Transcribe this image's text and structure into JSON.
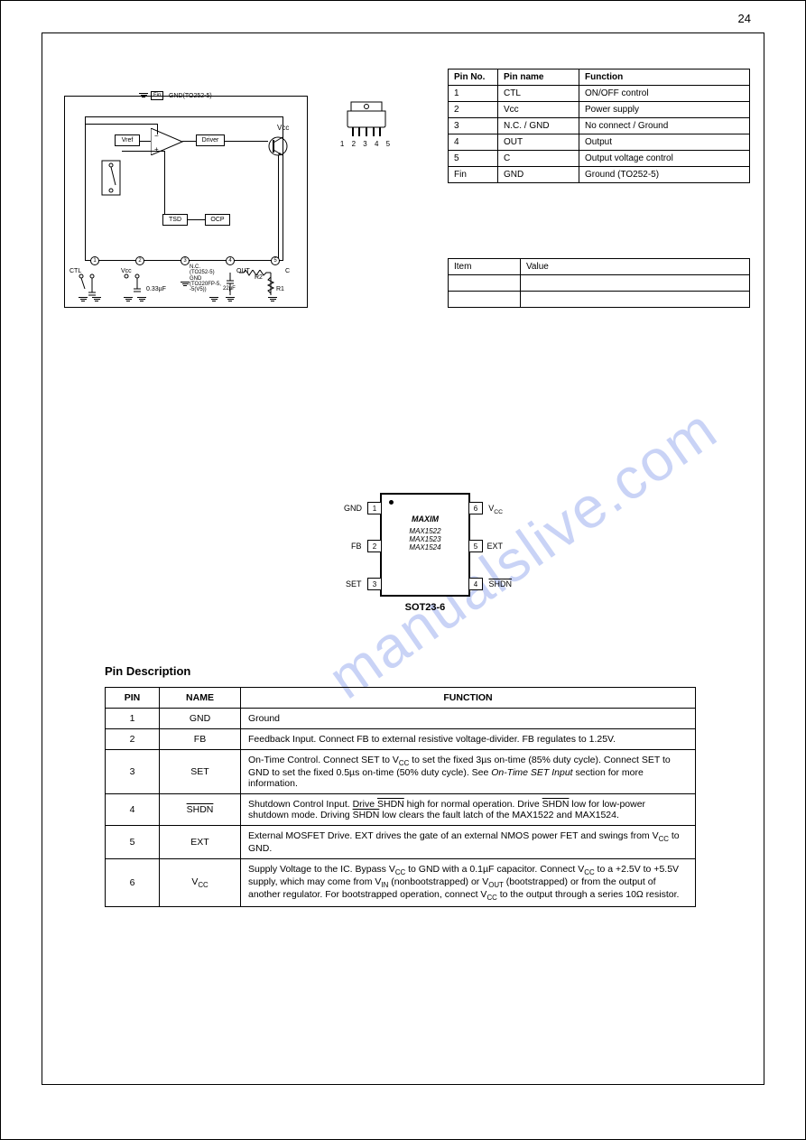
{
  "page_number": "24",
  "watermark_text": "manualslive.com",
  "colors": {
    "text": "#000000",
    "border": "#000000",
    "background": "#ffffff",
    "watermark": "rgba(100,130,230,0.35)"
  },
  "block_diagram": {
    "top_tab_label": "GND(TO252-5)",
    "top_tab_pin": "Fin",
    "vref_label": "Vref",
    "driver_label": "Driver",
    "tsd_label": "TSD",
    "ocp_label": "OCP",
    "vcc_top_label": "Vcc",
    "pins": {
      "p1": {
        "num": "1",
        "name": "CTL"
      },
      "p2": {
        "num": "2",
        "name": "Vcc"
      },
      "p3": {
        "num": "3",
        "name_top": "N.C.",
        "pkg_top": "(TO252-5)",
        "name_bot": "GND",
        "pkg_bot": "(TO220FP-5,\n-5(V5))"
      },
      "p4": {
        "num": "4",
        "name": "OUT"
      },
      "p5": {
        "num": "5",
        "name": "C"
      }
    },
    "cap1_label": "0.33µF",
    "cap2_label": "22µF",
    "r1_label": "R1",
    "r2_label": "R2"
  },
  "package_outline": {
    "pin_numbers": "1 2 3 4 5"
  },
  "pin_small_table": {
    "header": [
      "Pin No.",
      "Pin name",
      "Function"
    ],
    "rows": [
      [
        "1",
        "CTL",
        "ON/OFF control"
      ],
      [
        "2",
        "Vcc",
        "Power supply"
      ],
      [
        "3",
        "N.C. / GND",
        "No connect / Ground"
      ],
      [
        "4",
        "OUT",
        "Output"
      ],
      [
        "5",
        "C",
        "Output voltage control"
      ],
      [
        "Fin",
        "GND",
        "Ground (TO252-5)"
      ]
    ]
  },
  "small_3row": {
    "rows": [
      [
        "Item",
        "Value"
      ],
      [
        "",
        ""
      ],
      [
        "",
        ""
      ]
    ]
  },
  "sot23": {
    "brand": "MAXIM",
    "parts": [
      "MAX1522",
      "MAX1523",
      "MAX1524"
    ],
    "package_name": "SOT23-6",
    "pins_left": [
      {
        "n": "1",
        "lbl": "GND"
      },
      {
        "n": "2",
        "lbl": "FB"
      },
      {
        "n": "3",
        "lbl": "SET"
      }
    ],
    "pins_right": [
      {
        "n": "6",
        "lbl": "Vcc"
      },
      {
        "n": "5",
        "lbl": "EXT"
      },
      {
        "n": "4",
        "lbl": "SHDN",
        "over": true
      }
    ]
  },
  "pin_desc_header": "Pin Description",
  "pin_func_table": {
    "headers": [
      "PIN",
      "NAME",
      "FUNCTION"
    ],
    "col_widths": [
      "60px",
      "90px",
      "auto"
    ],
    "rows": [
      {
        "pin": "1",
        "name": "GND",
        "func": "Ground"
      },
      {
        "pin": "2",
        "name": "FB",
        "func": "Feedback Input. Connect FB to external resistive voltage-divider. FB regulates to 1.25V."
      },
      {
        "pin": "3",
        "name": "SET",
        "func": "On-Time Control. Connect SET to V<sub>CC</sub> to set the fixed 3µs on-time (85% duty cycle). Connect SET to GND to set the fixed 0.5µs on-time (50% duty cycle). See <i>On-Time SET Input</i> section for more information."
      },
      {
        "pin": "4",
        "name": "SHDN",
        "name_over": true,
        "func": "Shutdown Control Input. Drive <span class=\"overline\">SHDN</span> high for normal operation. Drive <span class=\"overline\">SHDN</span> low for low-power shutdown mode. Driving <span class=\"overline\">SHDN</span> low clears the fault latch of the MAX1522 and MAX1524."
      },
      {
        "pin": "5",
        "name": "EXT",
        "func": "External MOSFET Drive. EXT drives the gate of an external NMOS power FET and swings from V<sub>CC</sub> to GND."
      },
      {
        "pin": "6",
        "name": "Vcc",
        "name_html": "V<sub>CC</sub>",
        "func": "Supply Voltage to the IC. Bypass V<sub>CC</sub> to GND with a 0.1µF capacitor. Connect V<sub>CC</sub> to a +2.5V to +5.5V supply, which may come from V<sub>IN</sub> (nonbootstrapped) or V<sub>OUT</sub> (bootstrapped) or from the output of another regulator. For bootstrapped operation, connect V<sub>CC</sub> to the output through a series 10Ω resistor."
      }
    ]
  }
}
